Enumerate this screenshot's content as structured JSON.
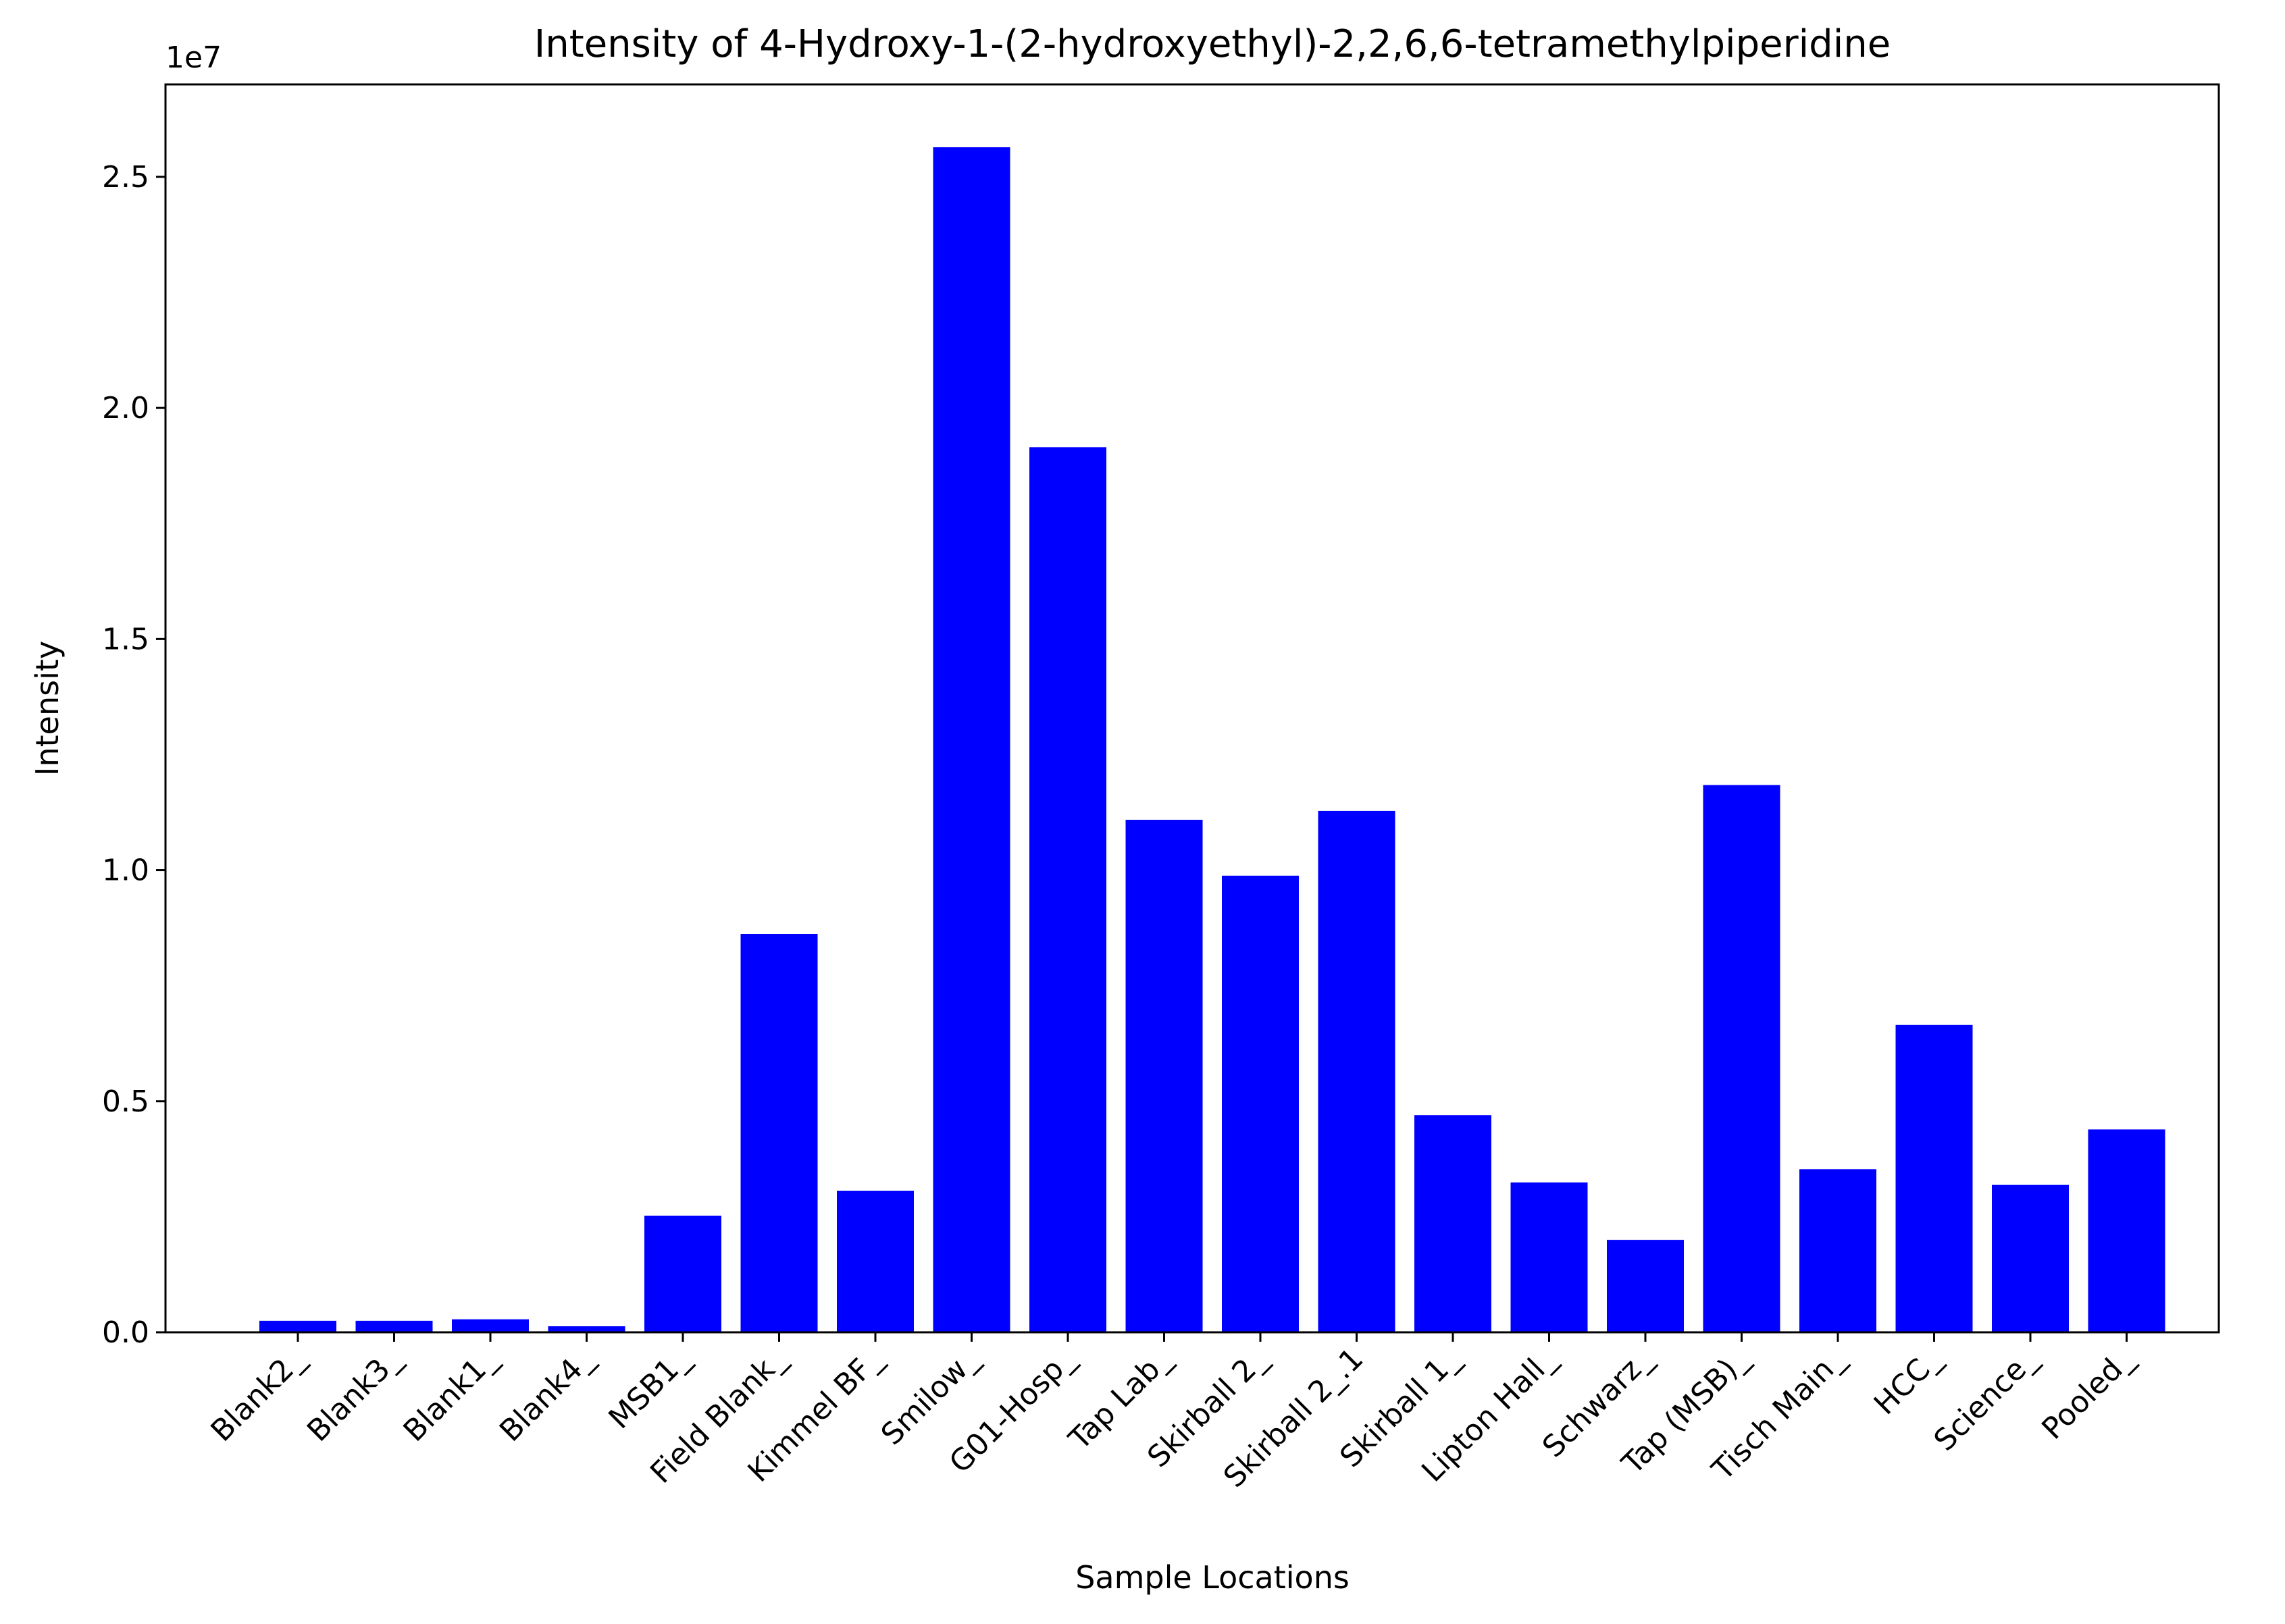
{
  "chart_data": {
    "type": "bar",
    "title": "Intensity of 4-Hydroxy-1-(2-hydroxyethyl)-2,2,6,6-tetramethylpiperidine",
    "xlabel": "Sample Locations",
    "ylabel": "Intensity",
    "y_offset_label": "1e7",
    "ylim": [
      0,
      27000000
    ],
    "yticks": [
      0,
      5000000,
      10000000,
      15000000,
      20000000,
      25000000
    ],
    "ytick_labels": [
      "0.0",
      "0.5",
      "1.0",
      "1.5",
      "2.0",
      "2.5"
    ],
    "bar_color": "#0000ff",
    "grid": false,
    "categories": [
      "Blank2_",
      "Blank3_",
      "Blank1_",
      "Blank4_",
      "MSB1_",
      "Field Blank_",
      "Kimmel BF_",
      "Smilow_",
      "G01-Hosp_",
      "Tap Lab_",
      "Skirball 2_",
      "Skirball 2_.1",
      "Skirball 1_",
      "Lipton Hall_",
      "Schwarz_",
      "Tap (MSB)_",
      "Tisch Main_",
      "HCC_",
      "Science_",
      "Pooled_"
    ],
    "values": [
      250000,
      250000,
      280000,
      130000,
      2520000,
      8620000,
      3060000,
      25640000,
      19150000,
      11090000,
      9880000,
      11280000,
      4700000,
      3240000,
      2000000,
      11840000,
      3530000,
      6650000,
      3190000,
      4390000
    ]
  }
}
